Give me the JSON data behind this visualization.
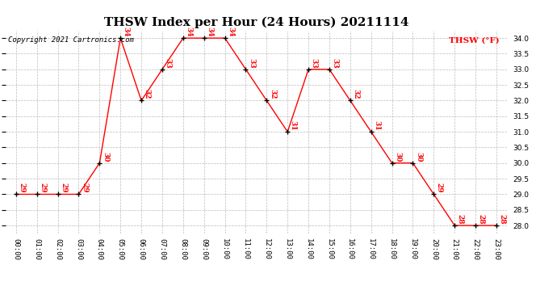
{
  "title": "THSW Index per Hour (24 Hours) 20211114",
  "copyright": "Copyright 2021 Cartronics.com",
  "legend_label": "THSW (°F)",
  "hours": [
    "00:00",
    "01:00",
    "02:00",
    "03:00",
    "04:00",
    "05:00",
    "06:00",
    "07:00",
    "08:00",
    "09:00",
    "10:00",
    "11:00",
    "12:00",
    "13:00",
    "14:00",
    "15:00",
    "16:00",
    "17:00",
    "18:00",
    "19:00",
    "20:00",
    "21:00",
    "22:00",
    "23:00"
  ],
  "values": [
    29,
    29,
    29,
    29,
    30,
    34,
    32,
    33,
    34,
    34,
    34,
    33,
    32,
    31,
    33,
    33,
    32,
    31,
    30,
    30,
    29,
    28,
    28,
    28
  ],
  "line_color": "#FF0000",
  "marker_color": "#000000",
  "label_color": "#FF0000",
  "background_color": "#FFFFFF",
  "grid_color": "#BBBBBB",
  "title_color": "#000000",
  "copyright_color": "#000000",
  "ylim": [
    27.75,
    34.25
  ],
  "yticks": [
    28.0,
    28.5,
    29.0,
    29.5,
    30.0,
    30.5,
    31.0,
    31.5,
    32.0,
    32.5,
    33.0,
    33.5,
    34.0
  ],
  "title_fontsize": 11,
  "label_fontsize": 6.5,
  "tick_fontsize": 6.5,
  "copyright_fontsize": 6.5,
  "legend_fontsize": 7.5
}
